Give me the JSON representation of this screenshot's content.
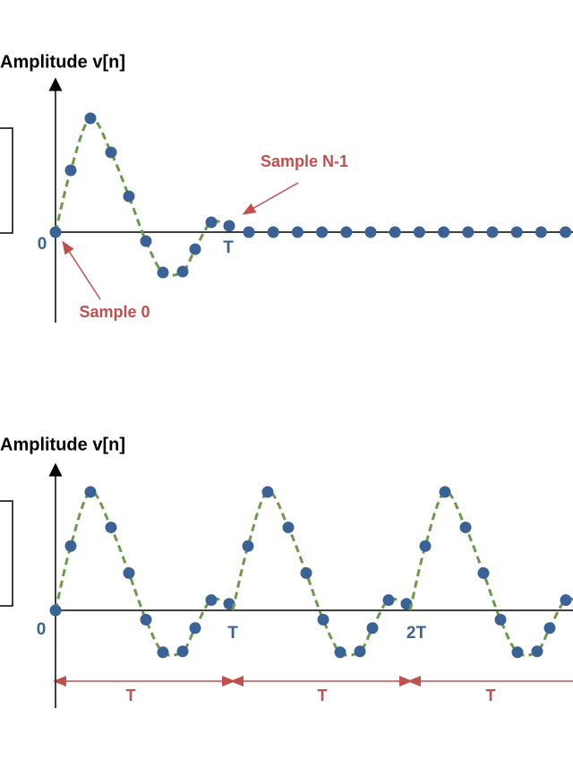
{
  "panels": [
    {
      "y_axis_label": "Amplitude v[n]",
      "origin_label": "0",
      "period_label": "T",
      "annotations": [
        "Sample N-1",
        "Sample 0"
      ]
    },
    {
      "y_axis_label": "Amplitude v[n]",
      "origin_label": "0",
      "period_labels": [
        "T",
        "2T"
      ],
      "interval_labels": [
        "T",
        "T",
        "T"
      ]
    }
  ]
}
